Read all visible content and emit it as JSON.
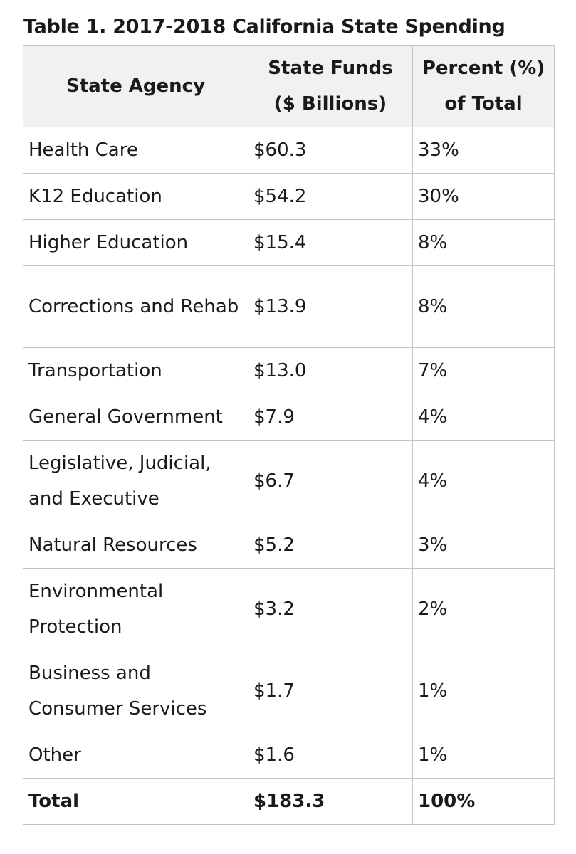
{
  "caption": "Table 1. 2017-2018 California State Spending",
  "headers": {
    "agency": "State Agency",
    "funds_line1": "State Funds",
    "funds_line2": "($ Billions)",
    "percent_line1": "Percent (%)",
    "percent_line2": "of Total"
  },
  "rows": [
    {
      "agency": "Health Care",
      "funds": "$60.3",
      "percent": "33%"
    },
    {
      "agency": "K12 Education",
      "funds": "$54.2",
      "percent": "30%"
    },
    {
      "agency": "Higher Education",
      "funds": "$15.4",
      "percent": "8%"
    },
    {
      "agency": "Corrections and Rehab",
      "funds": "$13.9",
      "percent": "8%"
    },
    {
      "agency": "Transportation",
      "funds": "$13.0",
      "percent": "7%"
    },
    {
      "agency": "General Government",
      "funds": "$7.9",
      "percent": "4%"
    },
    {
      "agency": "Legislative, Judicial, and Executive",
      "funds": "$6.7",
      "percent": "4%"
    },
    {
      "agency": "Natural Resources",
      "funds": "$5.2",
      "percent": "3%"
    },
    {
      "agency": "Environmental Protection",
      "funds": "$3.2",
      "percent": "2%"
    },
    {
      "agency": "Business and Consumer Services",
      "funds": "$1.7",
      "percent": "1%"
    },
    {
      "agency": "Other",
      "funds": "$1.6",
      "percent": "1%"
    }
  ],
  "total": {
    "agency": "Total",
    "funds": "$183.3",
    "percent": "100%"
  }
}
